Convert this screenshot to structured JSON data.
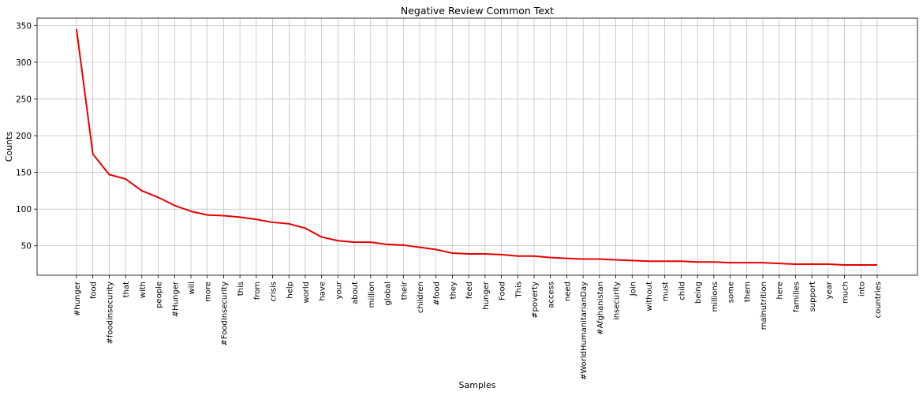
{
  "chart_data": {
    "type": "line",
    "title": "Negative Review Common Text",
    "xlabel": "Samples",
    "ylabel": "Counts",
    "ylim": [
      10,
      360
    ],
    "yticks": [
      50,
      100,
      150,
      200,
      250,
      300,
      350
    ],
    "grid": true,
    "line_color": "#e60000",
    "grid_color": "#b0b0b0",
    "categories": [
      "#hunger",
      "food",
      "#foodinsecurity",
      "that",
      "with",
      "people",
      "#Hunger",
      "will",
      "more",
      "#FoodInsecurity",
      "this",
      "from",
      "crisis",
      "help",
      "world",
      "have",
      "your",
      "about",
      "million",
      "global",
      "their",
      "children",
      "#food",
      "they",
      "feed",
      "hunger",
      "Food",
      "This",
      "#poverty",
      "access",
      "need",
      "#WorldHumanitarianDay",
      "#Afghanistan",
      "insecurity",
      "Join",
      "without",
      "must",
      "child",
      "being",
      "millions",
      "some",
      "them",
      "malnutrition",
      "here",
      "families",
      "support",
      "year",
      "much",
      "into",
      "countries"
    ],
    "values": [
      345,
      175,
      147,
      141,
      125,
      116,
      105,
      97,
      92,
      91,
      89,
      86,
      82,
      80,
      74,
      62,
      57,
      55,
      55,
      52,
      51,
      48,
      45,
      40,
      39,
      39,
      38,
      36,
      36,
      34,
      33,
      32,
      32,
      31,
      30,
      29,
      29,
      29,
      28,
      28,
      27,
      27,
      27,
      26,
      25,
      25,
      25,
      24,
      24,
      24
    ]
  }
}
